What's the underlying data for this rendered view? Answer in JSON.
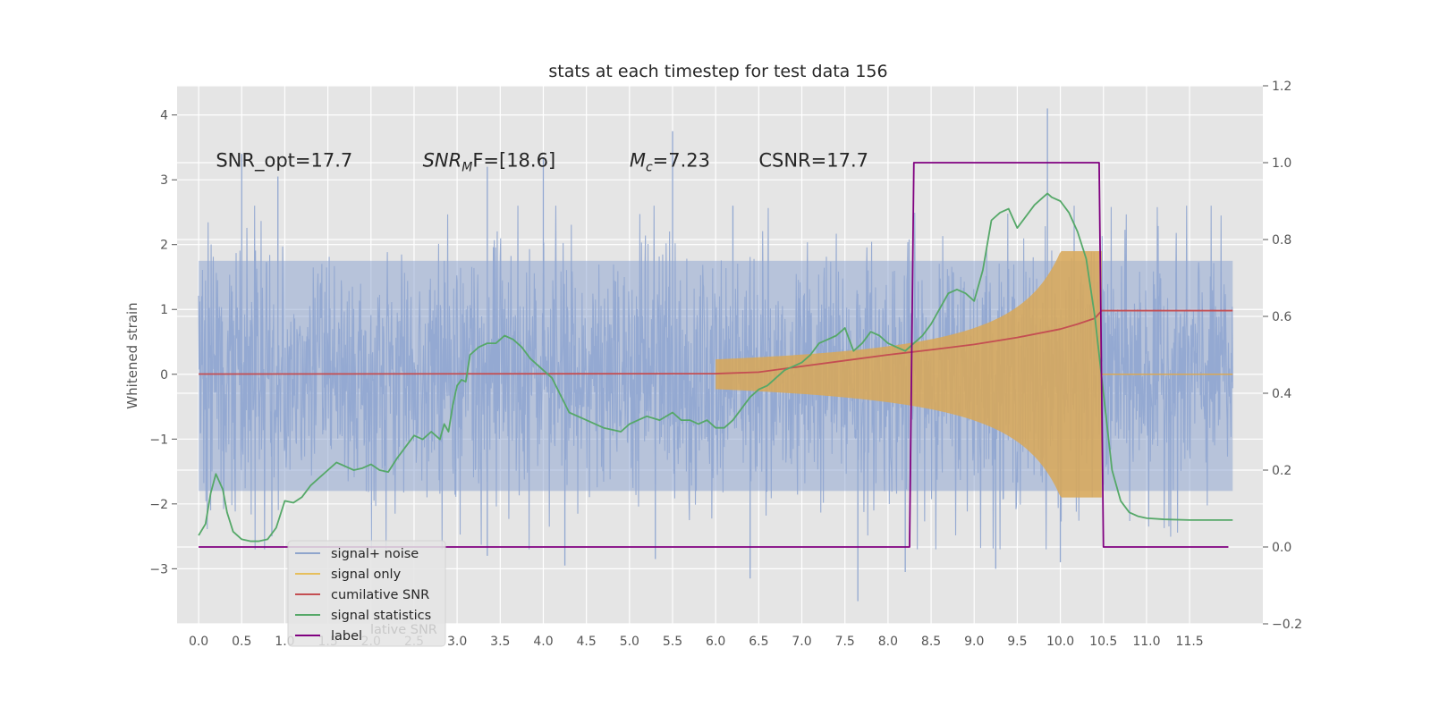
{
  "chart_data": {
    "type": "line",
    "title": "stats at each timestep for test data 156",
    "ylabel": "Whitened strain",
    "xlabel": "",
    "xlim": [
      -0.25,
      12.35
    ],
    "ylim": [
      -3.85,
      4.45
    ],
    "y2lim": [
      -0.2,
      1.2
    ],
    "grid": true,
    "legend_position": "lower-left",
    "x_ticks": [
      "0.0",
      "0.5",
      "1.0",
      "1.5",
      "2.0",
      "2.5",
      "3.0",
      "3.5",
      "4.0",
      "4.5",
      "5.0",
      "5.5",
      "6.0",
      "6.5",
      "7.0",
      "7.5",
      "8.0",
      "8.5",
      "9.0",
      "9.5",
      "10.0",
      "10.5",
      "11.0",
      "11.5"
    ],
    "y_ticks_left": [
      "−3",
      "−2",
      "−1",
      "0",
      "1",
      "2",
      "3",
      "4"
    ],
    "y_ticks_right": [
      "−0.2",
      "0.0",
      "0.2",
      "0.4",
      "0.6",
      "0.8",
      "1.0",
      "1.2"
    ],
    "annotations": [
      {
        "text": "SNR_opt=17.7",
        "x": 0.2,
        "y": 3.3
      },
      {
        "prefix": "SNR",
        "sub": "M",
        "suffix": "F=[18.6]",
        "x": 2.6,
        "y": 3.3
      },
      {
        "prefix": "M",
        "sub": "c",
        "suffix": "=7.23",
        "x": 5.0,
        "y": 3.3
      },
      {
        "text": "CSNR=17.7",
        "x": 6.5,
        "y": 3.3
      }
    ],
    "legend": [
      {
        "label": "signal+ noise",
        "color": "#8fa5cc"
      },
      {
        "label": "signal only",
        "color": "#e6bf5c"
      },
      {
        "label": "cumilative SNR",
        "color": "#c44e52"
      },
      {
        "label": "signal statistics",
        "color": "#55a868"
      },
      {
        "label": "label",
        "color": "#800080"
      }
    ],
    "legend_ghost_text": "lative SNR",
    "series": [
      {
        "name": "signal+ noise",
        "axis": "left",
        "color": "#92a8d1",
        "t_start": 0.0,
        "t_end": 12.0,
        "envelope_upper": 1.75,
        "envelope_lower": -1.8,
        "spikes": [
          {
            "x": 0.5,
            "y": 3.4
          },
          {
            "x": 0.92,
            "y": 3.05
          },
          {
            "x": 3.35,
            "y": 3.2
          },
          {
            "x": 4.0,
            "y": 3.35
          },
          {
            "x": 5.5,
            "y": 3.75
          },
          {
            "x": 6.2,
            "y": 2.6
          },
          {
            "x": 9.85,
            "y": 4.1
          },
          {
            "x": 0.85,
            "y": -2.5
          },
          {
            "x": 3.35,
            "y": -2.8
          },
          {
            "x": 4.25,
            "y": -2.95
          },
          {
            "x": 5.3,
            "y": -2.85
          },
          {
            "x": 6.4,
            "y": -3.15
          },
          {
            "x": 7.65,
            "y": -3.5
          },
          {
            "x": 8.2,
            "y": -3.05
          },
          {
            "x": 9.25,
            "y": -3.0
          },
          {
            "x": 10.0,
            "y": -2.9
          }
        ]
      },
      {
        "name": "signal only",
        "axis": "left",
        "color": "#d9a857",
        "chirp_start": 6.0,
        "chirp_end": 10.48,
        "peak_amplitude": 1.9
      },
      {
        "name": "cumilative SNR",
        "axis": "right",
        "color": "#c44e52",
        "x": [
          0.0,
          6.0,
          6.5,
          7.0,
          7.5,
          8.0,
          8.5,
          9.0,
          9.5,
          10.0,
          10.2,
          10.4,
          10.48,
          10.55,
          12.0
        ],
        "y": [
          0.45,
          0.451,
          0.455,
          0.47,
          0.485,
          0.5,
          0.513,
          0.527,
          0.545,
          0.567,
          0.58,
          0.595,
          0.615,
          0.615,
          0.615
        ]
      },
      {
        "name": "signal statistics",
        "axis": "right",
        "color": "#55a868",
        "x": [
          0.0,
          0.08,
          0.14,
          0.2,
          0.28,
          0.33,
          0.4,
          0.5,
          0.6,
          0.7,
          0.8,
          0.9,
          1.0,
          1.1,
          1.2,
          1.3,
          1.4,
          1.5,
          1.6,
          1.7,
          1.8,
          1.9,
          2.0,
          2.1,
          2.2,
          2.3,
          2.4,
          2.5,
          2.6,
          2.7,
          2.8,
          2.85,
          2.9,
          2.95,
          3.0,
          3.05,
          3.1,
          3.15,
          3.25,
          3.35,
          3.45,
          3.55,
          3.65,
          3.75,
          3.85,
          3.95,
          4.1,
          4.3,
          4.5,
          4.7,
          4.9,
          5.0,
          5.1,
          5.2,
          5.35,
          5.5,
          5.6,
          5.7,
          5.8,
          5.9,
          6.0,
          6.1,
          6.2,
          6.3,
          6.4,
          6.5,
          6.6,
          6.7,
          6.8,
          6.9,
          7.0,
          7.1,
          7.2,
          7.3,
          7.4,
          7.5,
          7.55,
          7.6,
          7.7,
          7.8,
          7.9,
          8.0,
          8.1,
          8.2,
          8.3,
          8.4,
          8.5,
          8.6,
          8.7,
          8.8,
          8.9,
          9.0,
          9.1,
          9.2,
          9.3,
          9.4,
          9.5,
          9.6,
          9.7,
          9.8,
          9.85,
          9.9,
          10.0,
          10.1,
          10.2,
          10.3,
          10.4,
          10.5,
          10.6,
          10.7,
          10.8,
          10.9,
          11.0,
          11.2,
          11.5,
          12.0
        ],
        "y": [
          0.03,
          0.06,
          0.14,
          0.19,
          0.15,
          0.09,
          0.04,
          0.02,
          0.015,
          0.015,
          0.02,
          0.05,
          0.12,
          0.115,
          0.13,
          0.16,
          0.18,
          0.2,
          0.22,
          0.21,
          0.2,
          0.205,
          0.215,
          0.2,
          0.195,
          0.23,
          0.26,
          0.29,
          0.28,
          0.3,
          0.28,
          0.32,
          0.3,
          0.37,
          0.42,
          0.435,
          0.43,
          0.5,
          0.52,
          0.53,
          0.53,
          0.55,
          0.54,
          0.52,
          0.49,
          0.47,
          0.44,
          0.35,
          0.33,
          0.31,
          0.3,
          0.32,
          0.33,
          0.34,
          0.33,
          0.35,
          0.33,
          0.33,
          0.32,
          0.33,
          0.31,
          0.31,
          0.33,
          0.36,
          0.39,
          0.41,
          0.42,
          0.44,
          0.46,
          0.47,
          0.48,
          0.5,
          0.53,
          0.54,
          0.55,
          0.57,
          0.54,
          0.51,
          0.53,
          0.56,
          0.55,
          0.53,
          0.52,
          0.51,
          0.53,
          0.55,
          0.58,
          0.62,
          0.66,
          0.67,
          0.66,
          0.64,
          0.72,
          0.85,
          0.87,
          0.88,
          0.83,
          0.86,
          0.89,
          0.91,
          0.92,
          0.91,
          0.9,
          0.87,
          0.82,
          0.75,
          0.6,
          0.4,
          0.2,
          0.12,
          0.09,
          0.08,
          0.075,
          0.072,
          0.07,
          0.07
        ]
      },
      {
        "name": "label",
        "axis": "right",
        "color": "#800080",
        "x": [
          0.0,
          8.25,
          8.3,
          10.45,
          10.5,
          11.95
        ],
        "y": [
          0.0,
          0.0,
          1.0,
          1.0,
          0.0,
          0.0
        ]
      }
    ]
  }
}
